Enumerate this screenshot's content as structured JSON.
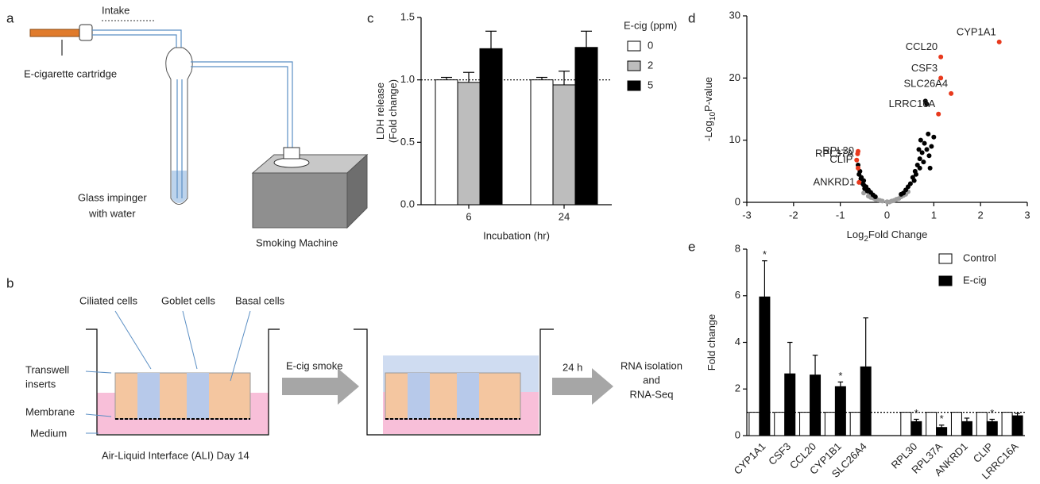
{
  "panel_a": {
    "letter": "a",
    "intake": "Intake",
    "cartridge": "E-cigarette cartridge",
    "impinger": [
      "Glass impinger",
      "with water"
    ],
    "machine": "Smoking Machine"
  },
  "panel_b": {
    "letter": "b",
    "ciliated": "Ciliated cells",
    "goblet": "Goblet cells",
    "basal": "Basal cells",
    "transwell": [
      "Transwell",
      "inserts"
    ],
    "membrane": "Membrane",
    "medium": "Medium",
    "smoke": "E-cig smoke",
    "time": "24 h",
    "rna": [
      "RNA isolation",
      "and",
      "RNA-Seq"
    ],
    "caption": "Air-Liquid Interface (ALI) Day 14"
  },
  "chart_data": [
    {
      "type": "bar",
      "letter": "c",
      "ylabel_lines": [
        "LDH release",
        "(Fold change)"
      ],
      "xlabel": "Incubation (hr)",
      "categories": [
        "6",
        "24"
      ],
      "legend_title": "E-cig (ppm)",
      "series": [
        {
          "name": "0",
          "color": "#ffffff",
          "values": [
            1.0,
            1.0
          ],
          "errors": [
            0.02,
            0.02
          ]
        },
        {
          "name": "2",
          "color": "#bdbdbd",
          "values": [
            0.98,
            0.96
          ],
          "errors": [
            0.08,
            0.11
          ]
        },
        {
          "name": "5",
          "color": "#000000",
          "values": [
            1.25,
            1.26
          ],
          "errors": [
            0.14,
            0.13
          ]
        }
      ],
      "ylim": [
        0,
        1.5
      ],
      "yticks": [
        {
          "value": 0,
          "label": "0.0"
        },
        {
          "value": 0.5,
          "label": "0.5"
        },
        {
          "value": 1,
          "label": "1.0"
        },
        {
          "value": 1.5,
          "label": "1.5"
        }
      ],
      "reference_line": 1
    },
    {
      "type": "scatter",
      "letter": "d",
      "ylabel_parts": [
        "-Log",
        "10",
        "P-value"
      ],
      "xlabel_parts": [
        "Log",
        "2",
        "Fold Change"
      ],
      "xlim": [
        -3,
        3
      ],
      "xticks": [
        -3,
        -2,
        -1,
        0,
        1,
        2,
        3
      ],
      "ylim": [
        0,
        30
      ],
      "yticks": [
        0,
        10,
        20,
        30
      ],
      "series": [
        {
          "color": "#9e9e9e",
          "x": [
            -0.4,
            -0.3,
            -0.2,
            -0.1,
            0,
            0.1,
            0.2,
            0.3,
            0.4,
            -0.5,
            0.15,
            -0.15,
            0.05,
            0.25,
            -0.25,
            0.35,
            0.45,
            -0.35
          ],
          "y": [
            1,
            0.7,
            0.4,
            0.2,
            0.1,
            0.2,
            0.5,
            0.9,
            1.3,
            1.5,
            0.3,
            0.3,
            0.05,
            0.6,
            0.5,
            1.1,
            1.7,
            0.8
          ]
        },
        {
          "color": "#000000",
          "x": [
            -0.55,
            -0.5,
            -0.58,
            -0.45,
            -0.4,
            -0.35,
            -0.5,
            -0.3,
            -0.6,
            -0.52,
            -0.42,
            -0.62,
            -0.56,
            -0.25,
            -0.48,
            0.3,
            0.4,
            0.5,
            0.55,
            0.6,
            0.65,
            0.7,
            0.75,
            0.8,
            0.85,
            0.9,
            0.95,
            1.0,
            0.85,
            0.82,
            0.72,
            0.68,
            0.45,
            0.58,
            0.62,
            0.7,
            0.78,
            0.88,
            0.35,
            0.92
          ],
          "y": [
            4,
            3.5,
            5,
            2.5,
            2,
            1.6,
            2.8,
            1.2,
            4.5,
            3,
            1.8,
            6,
            3.8,
            0.9,
            2.2,
            1.3,
            2,
            3,
            4,
            5,
            6,
            7,
            8,
            9.5,
            8.5,
            7.5,
            9,
            10.5,
            15.8,
            16.3,
            10,
            8.5,
            2.5,
            3.5,
            4.5,
            5.5,
            6.5,
            11,
            1.5,
            5.5
          ]
        },
        {
          "color": "#e8391d",
          "x": [
            2.4,
            1.15,
            1.15,
            1.37,
            1.1,
            -0.62,
            -0.63,
            -0.65,
            -0.62,
            -0.6
          ],
          "y": [
            25.8,
            23.4,
            20,
            17.5,
            14.2,
            8.2,
            7.8,
            6.8,
            5.5,
            3.2
          ],
          "labels": [
            "CYP1A1",
            "CCL20",
            "CSF3",
            "SLC26A4",
            "LRRC16A",
            "RPL30",
            "RPL37A",
            "CLIP",
            null,
            "ANKRD1"
          ]
        }
      ]
    },
    {
      "type": "bar",
      "letter": "e",
      "ylabel_lines": [
        "Fold change"
      ],
      "categories": [
        "CYP1A1",
        "CSF3",
        "CCL20",
        "CYP1B1",
        "SLC26A4",
        null,
        "RPL30",
        "RPL37A",
        "ANKRD1",
        "CLIP",
        "LRRC16A"
      ],
      "series": [
        {
          "name": "Control",
          "color": "#ffffff",
          "values": [
            1,
            1,
            1,
            1,
            1,
            null,
            1,
            1,
            1,
            1,
            1
          ]
        },
        {
          "name": "E-cig",
          "color": "#000000",
          "values": [
            5.95,
            2.65,
            2.6,
            2.1,
            2.95,
            null,
            0.6,
            0.35,
            0.6,
            0.6,
            0.85
          ],
          "errors": [
            1.55,
            1.35,
            0.85,
            0.2,
            2.1,
            null,
            0.1,
            0.1,
            0.15,
            0.1,
            0.1
          ]
        }
      ],
      "significance": [
        "*",
        null,
        null,
        "*",
        null,
        null,
        "*",
        "*",
        null,
        "*",
        null
      ],
      "ylim": [
        0,
        8
      ],
      "yticks": [
        0,
        2,
        4,
        6,
        8
      ],
      "reference_line": 1
    }
  ]
}
